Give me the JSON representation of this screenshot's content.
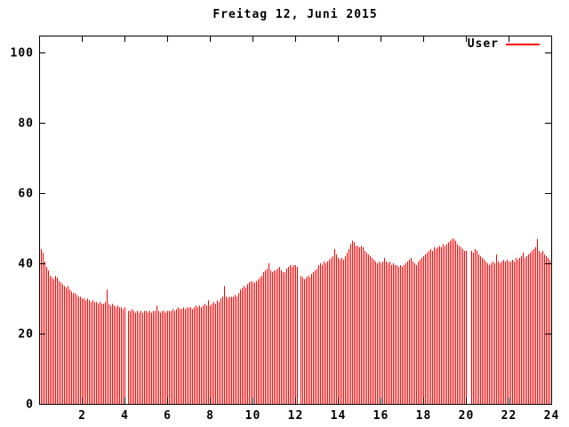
{
  "title": "Freitag 12, Juni 2015",
  "legend": {
    "label": "User",
    "color": "#ff0000"
  },
  "colors": {
    "bar": "#ff0000",
    "axis": "#000000",
    "background": "#ffffff",
    "text": "#000000"
  },
  "chart_data": {
    "type": "bar",
    "style": "impulses",
    "title": "Freitag 12, Juni 2015",
    "xlabel": "",
    "ylabel": "",
    "xlim": [
      0,
      24
    ],
    "ylim": [
      0,
      105
    ],
    "xticks": [
      2,
      4,
      6,
      8,
      10,
      12,
      14,
      16,
      18,
      20,
      22,
      24
    ],
    "yticks": [
      0,
      20,
      40,
      60,
      80,
      100
    ],
    "grid": false,
    "legend_position": "top-right-inside",
    "x_unit": "hour of day",
    "interval_minutes": 5,
    "x_first_sample_hour": 0.0833,
    "series": [
      {
        "name": "User",
        "color": "#ff0000",
        "values": [
          44,
          43,
          40.5,
          39,
          38,
          36.5,
          36,
          35.5,
          36.5,
          36,
          35,
          34.5,
          34,
          33.5,
          33,
          33.5,
          32.5,
          32,
          31.5,
          31.5,
          31,
          30.5,
          30.5,
          30,
          30,
          29.5,
          30,
          29.5,
          29,
          29.5,
          29,
          29,
          28.5,
          29,
          28.5,
          28.5,
          29,
          32.5,
          28.5,
          28,
          28.5,
          28,
          27.5,
          28,
          27.5,
          27.5,
          27,
          27.5,
          null,
          26.5,
          26.5,
          27,
          26.5,
          26,
          26.5,
          26,
          26.5,
          26,
          26.5,
          26.5,
          26,
          26.5,
          26,
          26.5,
          26.5,
          28,
          26.5,
          26,
          26.5,
          26.5,
          26,
          26.5,
          26.5,
          26.5,
          27,
          26.5,
          27,
          27.5,
          27,
          27,
          27.5,
          27,
          27.5,
          27.5,
          27.5,
          27,
          27.5,
          28,
          27.5,
          28,
          27.5,
          28,
          28.5,
          28,
          29.5,
          28,
          28.5,
          29,
          28.5,
          29.5,
          29,
          30,
          30.5,
          33.5,
          30.5,
          30,
          30.5,
          30.5,
          30.5,
          31,
          30.5,
          31.5,
          32.5,
          33,
          33.5,
          33,
          34,
          34.5,
          35,
          34.5,
          34.5,
          35,
          35.5,
          36,
          36.5,
          37.5,
          38,
          38.5,
          40,
          38,
          37.5,
          38,
          38,
          38.5,
          39,
          38,
          37.5,
          37.5,
          38.5,
          39,
          39.5,
          39,
          39.5,
          39.5,
          39,
          null,
          36.5,
          36,
          35.5,
          36,
          36.5,
          36,
          37,
          37.5,
          38,
          38.5,
          39.5,
          40,
          39.5,
          40.5,
          40,
          40.5,
          41,
          41.5,
          42,
          44,
          42.5,
          41.5,
          41,
          41.5,
          41,
          42,
          43,
          44,
          45.5,
          46.5,
          46,
          45,
          45,
          44.5,
          45,
          44.5,
          43.5,
          43,
          42.5,
          42,
          41.5,
          41,
          40.5,
          40,
          40.5,
          40,
          40.5,
          41.5,
          40.5,
          40,
          40.5,
          39.5,
          40,
          39.5,
          39.5,
          39,
          39.5,
          39,
          39.5,
          40,
          40.5,
          41,
          41.5,
          40.5,
          40,
          39.5,
          40.5,
          41,
          41.5,
          42,
          42.5,
          43,
          43.5,
          44,
          43.5,
          44.5,
          44,
          44.5,
          45,
          44.5,
          45.5,
          45,
          45.5,
          46,
          46.5,
          47,
          47,
          46.5,
          45.5,
          45,
          44.5,
          44,
          43.5,
          43.5,
          null,
          null,
          43.5,
          43,
          44,
          43.5,
          42.5,
          42,
          41.5,
          41,
          40.5,
          40,
          39.5,
          40,
          40.5,
          40,
          42.5,
          40.5,
          40,
          40.5,
          41,
          40.5,
          41,
          40.5,
          40.5,
          41,
          40.5,
          41.5,
          41,
          41.5,
          42,
          43,
          41.5,
          42,
          42.5,
          43,
          43.5,
          44,
          44.5,
          47,
          43.5,
          43,
          43.5,
          42.5,
          42,
          41.5,
          41,
          41
        ]
      }
    ]
  }
}
